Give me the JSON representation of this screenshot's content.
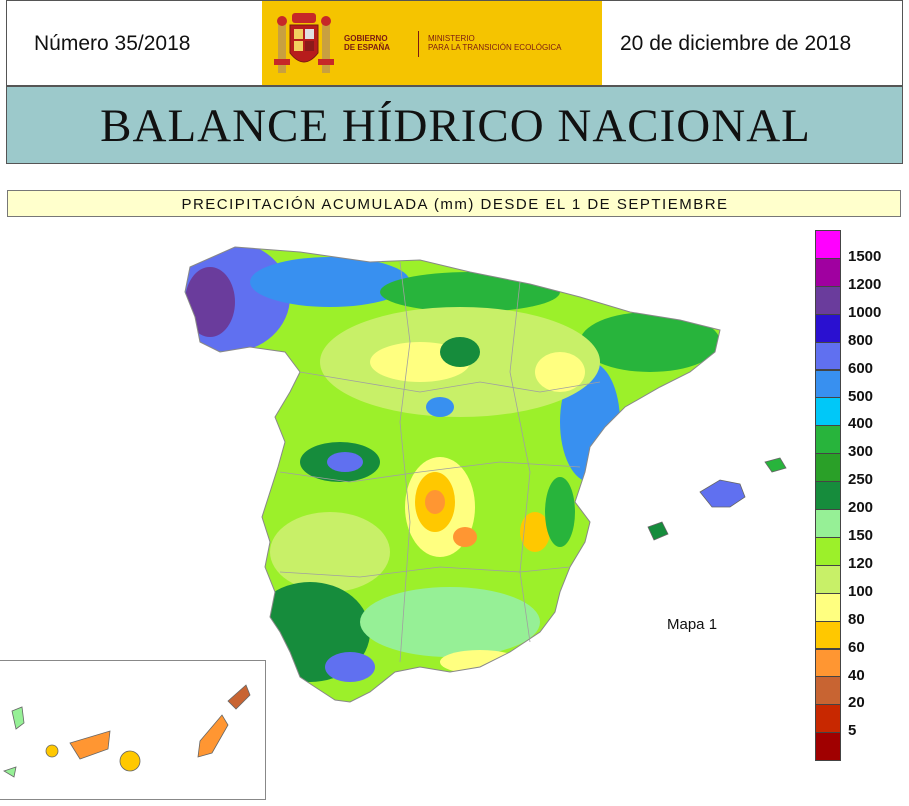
{
  "header": {
    "issue_number": "Número 35/2018",
    "date": "20 de diciembre de 2018",
    "logo_text_gov": "GOBIERNO\nDE ESPAÑA",
    "logo_text_ministry": "MINISTERIO\nPARA LA TRANSICIÓN ECOLÓGICA"
  },
  "title": "BALANCE HÍDRICO NACIONAL",
  "subtitle": "PRECIPITACIÓN ACUMULADA (mm) DESDE EL 1 DE SEPTIEMBRE",
  "map_label": "Mapa 1",
  "legend": {
    "items": [
      {
        "label": "1500",
        "color": "#ff00ff"
      },
      {
        "label": "1200",
        "color": "#a000a0"
      },
      {
        "label": "1000",
        "color": "#6a3c9c"
      },
      {
        "label": "800",
        "color": "#2a10d0"
      },
      {
        "label": "600",
        "color": "#6070f0"
      },
      {
        "label": "500",
        "color": "#3890f0"
      },
      {
        "label": "400",
        "color": "#00c8f8"
      },
      {
        "label": "300",
        "color": "#28b43c"
      },
      {
        "label": "250",
        "color": "#2aa028"
      },
      {
        "label": "200",
        "color": "#168c3c"
      },
      {
        "label": "150",
        "color": "#96f096"
      },
      {
        "label": "120",
        "color": "#9cf02a"
      },
      {
        "label": "100",
        "color": "#c8f068"
      },
      {
        "label": "80",
        "color": "#ffff80"
      },
      {
        "label": "60",
        "color": "#ffc800"
      },
      {
        "label": "40",
        "color": "#ff9632"
      },
      {
        "label": "20",
        "color": "#c86432"
      },
      {
        "label": "5",
        "color": "#c82800"
      },
      {
        "label": "",
        "color": "#a00000"
      }
    ]
  },
  "colors": {
    "title_bg": "#9cc9cb",
    "subtitle_bg": "#ffffcc",
    "logo_bg": "#f5c400"
  }
}
